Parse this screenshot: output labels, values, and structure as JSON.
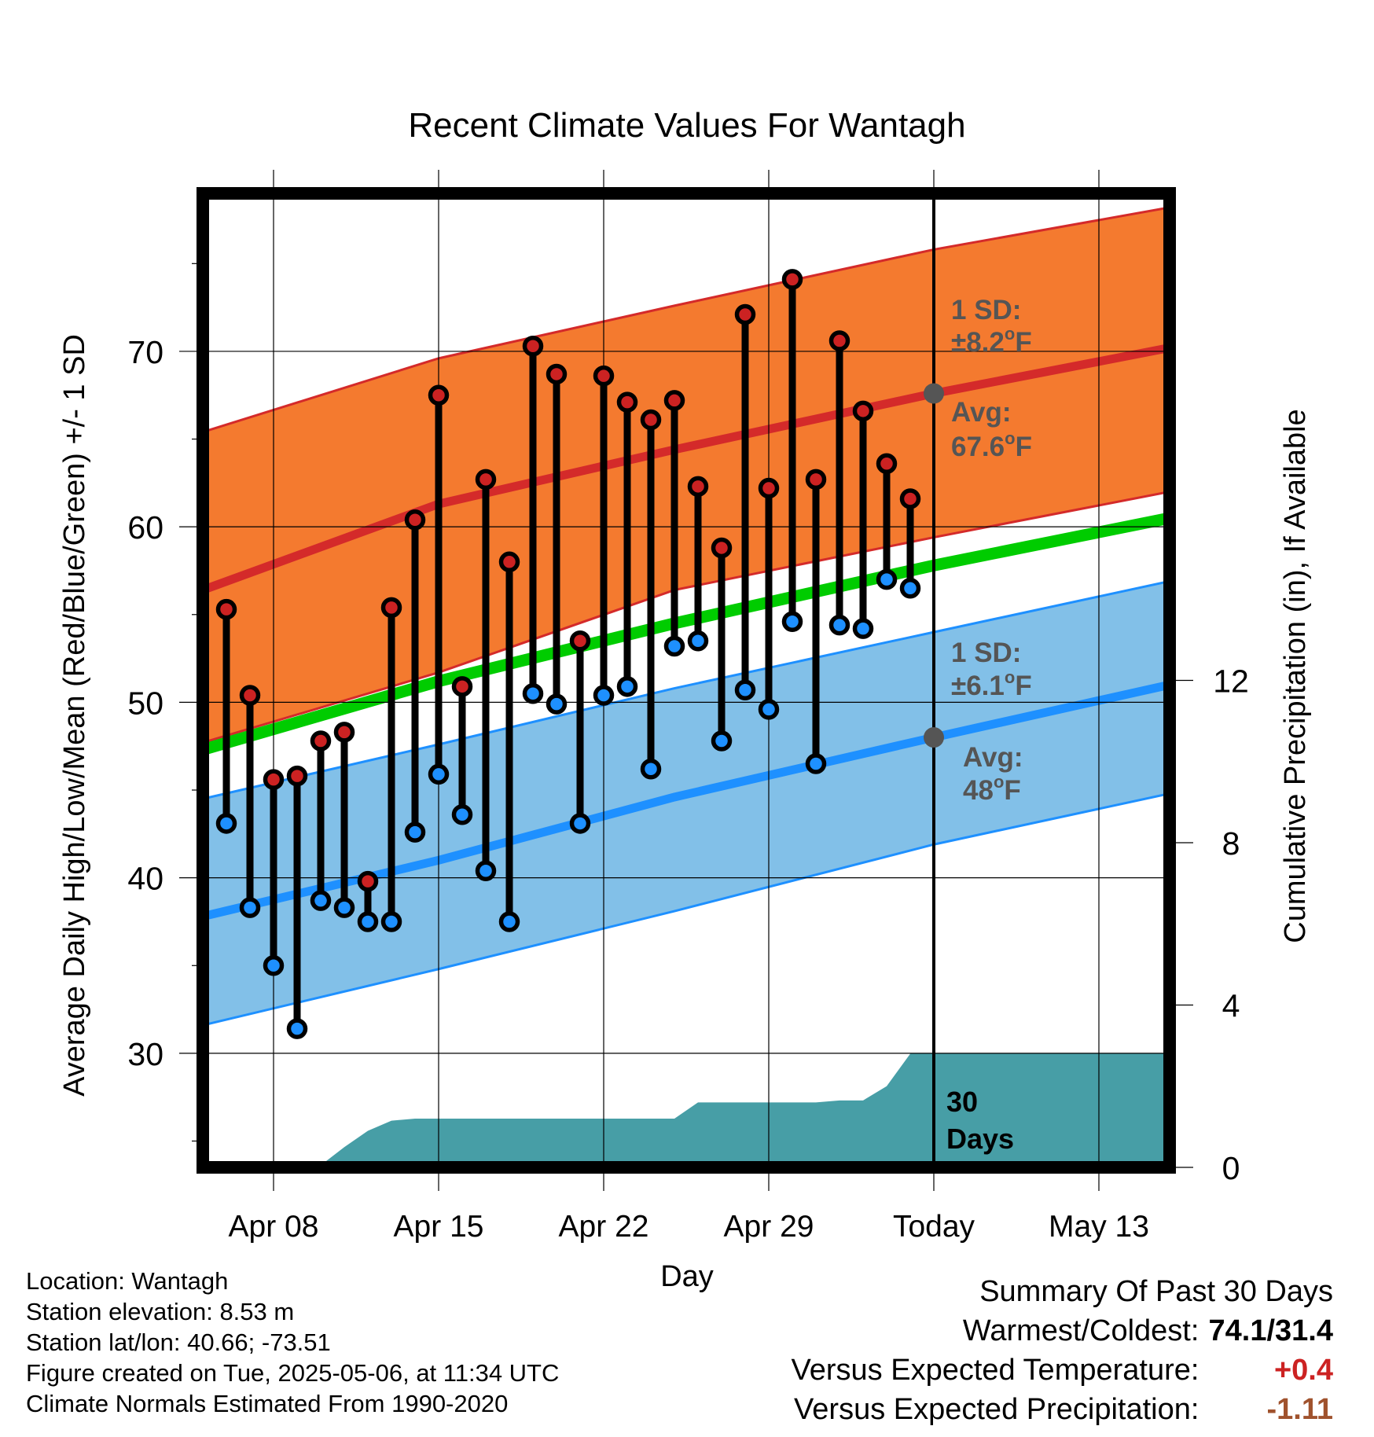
{
  "chart_data": {
    "type": "line",
    "title": "Recent Climate Values For Wantagh",
    "xlabel": "Day",
    "ylabel": "Average Daily High/Low/Mean (Red/Blue/Green) +/- 1 SD",
    "y2label": "Cumulative Precipitation (in), If Available",
    "ylim": [
      23.5,
      79
    ],
    "y_ticks": [
      30,
      40,
      50,
      60,
      70
    ],
    "y2lim": [
      0,
      24
    ],
    "y2_ticks": [
      0,
      4,
      8,
      12
    ],
    "x_range": [
      "2025-04-05",
      "2025-05-16"
    ],
    "x_ticks": [
      {
        "date": "2025-04-08",
        "label": "Apr 08"
      },
      {
        "date": "2025-04-15",
        "label": "Apr 15"
      },
      {
        "date": "2025-04-22",
        "label": "Apr 22"
      },
      {
        "date": "2025-04-29",
        "label": "Apr 29"
      },
      {
        "date": "2025-05-06",
        "label": "Today"
      },
      {
        "date": "2025-05-13",
        "label": "May 13"
      }
    ],
    "grid": true,
    "today": "2025-05-06",
    "days": [
      "2025-04-06",
      "2025-04-07",
      "2025-04-08",
      "2025-04-09",
      "2025-04-10",
      "2025-04-11",
      "2025-04-12",
      "2025-04-13",
      "2025-04-14",
      "2025-04-15",
      "2025-04-16",
      "2025-04-17",
      "2025-04-18",
      "2025-04-19",
      "2025-04-20",
      "2025-04-21",
      "2025-04-22",
      "2025-04-23",
      "2025-04-24",
      "2025-04-25",
      "2025-04-26",
      "2025-04-27",
      "2025-04-28",
      "2025-04-29",
      "2025-04-30",
      "2025-05-01",
      "2025-05-02",
      "2025-05-03",
      "2025-05-04",
      "2025-05-05"
    ],
    "series": [
      {
        "name": "High",
        "color": "#cc2222",
        "values": [
          55.3,
          50.4,
          45.6,
          45.8,
          47.8,
          48.3,
          39.8,
          55.4,
          60.4,
          67.5,
          50.9,
          62.7,
          58.0,
          70.3,
          68.7,
          53.5,
          68.6,
          67.1,
          66.1,
          67.2,
          62.3,
          58.8,
          72.1,
          62.2,
          74.1,
          62.7,
          70.6,
          66.6,
          63.6,
          61.6
        ]
      },
      {
        "name": "Low",
        "color": "#1e90ff",
        "values": [
          43.1,
          38.3,
          35.0,
          31.4,
          38.7,
          38.3,
          37.5,
          37.5,
          42.6,
          45.9,
          43.6,
          40.4,
          37.5,
          50.5,
          49.9,
          43.1,
          50.4,
          50.9,
          46.2,
          53.2,
          53.5,
          47.8,
          50.7,
          49.6,
          54.6,
          46.5,
          54.4,
          54.2,
          57.0,
          56.5
        ]
      }
    ],
    "normals": {
      "x": [
        "2025-04-05",
        "2025-04-15",
        "2025-04-25",
        "2025-05-06",
        "2025-05-16"
      ],
      "high_avg": [
        56.4,
        61.3,
        64.4,
        67.6,
        70.2
      ],
      "high_upper": [
        65.4,
        69.6,
        72.6,
        75.8,
        78.2
      ],
      "high_lower": [
        47.7,
        51.7,
        56.4,
        59.4,
        62.0
      ],
      "low_avg": [
        37.8,
        41.0,
        44.6,
        48.0,
        51.0
      ],
      "low_upper": [
        44.5,
        47.6,
        50.8,
        54.0,
        56.9
      ],
      "low_lower": [
        31.6,
        34.8,
        38.1,
        41.9,
        44.8
      ],
      "mean_avg": [
        47.3,
        51.2,
        54.5,
        57.8,
        60.5
      ],
      "colors": {
        "high_band": "#f47a2f",
        "high_line": "#d42a2a",
        "low_band": "#82c0e8",
        "low_line": "#1e90ff",
        "mean_line": "#00cc00"
      }
    },
    "precip": {
      "color": "#479ea6",
      "x": [
        "2025-04-05",
        "2025-04-06",
        "2025-04-07",
        "2025-04-08",
        "2025-04-09",
        "2025-04-10",
        "2025-04-11",
        "2025-04-12",
        "2025-04-13",
        "2025-04-14",
        "2025-04-15",
        "2025-04-22",
        "2025-04-25",
        "2025-04-26",
        "2025-04-27",
        "2025-04-28",
        "2025-04-29",
        "2025-04-30",
        "2025-05-01",
        "2025-05-02",
        "2025-05-03",
        "2025-05-04",
        "2025-05-05",
        "2025-05-06",
        "2025-05-16"
      ],
      "values": [
        0,
        0,
        0.05,
        0.05,
        0.05,
        0.05,
        0.5,
        0.9,
        1.15,
        1.2,
        1.2,
        1.2,
        1.2,
        1.6,
        1.6,
        1.6,
        1.6,
        1.6,
        1.6,
        1.65,
        1.65,
        2.0,
        2.8,
        2.8,
        2.8
      ]
    },
    "annotations": [
      {
        "label": "1 SD:",
        "value": "±8.2",
        "unit": "oF"
      },
      {
        "label": "Avg:",
        "value": "67.6",
        "unit": "oF"
      },
      {
        "label": "1 SD:",
        "value": "±6.1",
        "unit": "oF"
      },
      {
        "label": "Avg:",
        "value": "48",
        "unit": "oF"
      },
      {
        "label": "30",
        "value": "Days"
      }
    ]
  },
  "info": {
    "location": "Location: Wantagh",
    "elevation": "Station elevation: 8.53 m",
    "latlon": "Station lat/lon: 40.66; -73.51",
    "created": "Figure created on Tue, 2025-05-06, at 11:34 UTC",
    "normals_period": "Climate Normals Estimated From 1990-2020"
  },
  "summary": {
    "title": "Summary Of Past 30 Days",
    "warmest_coldest_label": "Warmest/Coldest:",
    "warmest_coldest_value": "74.1/31.4",
    "temp_label": "Versus Expected Temperature:",
    "temp_value": "+0.4",
    "temp_color": "#cc2222",
    "precip_label": "Versus Expected Precipitation:",
    "precip_value": "-1.11",
    "precip_color": "#a0522d"
  }
}
